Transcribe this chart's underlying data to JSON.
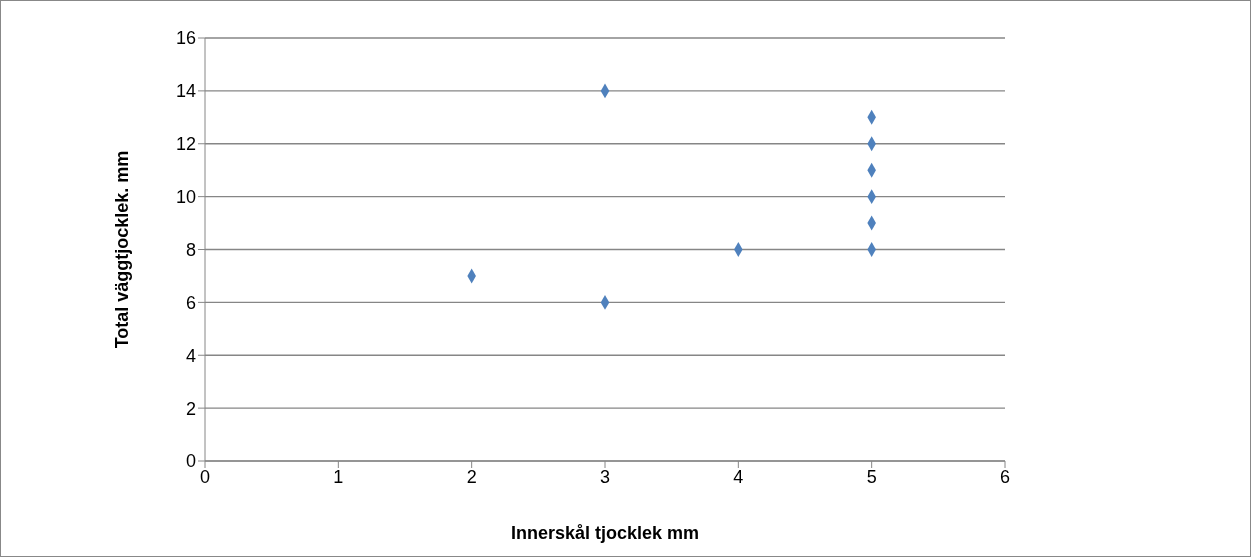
{
  "chart_data": {
    "type": "scatter",
    "xlabel": "Innerskål tjocklek mm",
    "ylabel": "Total väggtjocklek. mm",
    "x": [
      2,
      3,
      3,
      4,
      5,
      5,
      5,
      5,
      5,
      5
    ],
    "series": [
      {
        "color": "#4f81bd",
        "values": [
          7,
          14,
          6,
          8,
          8,
          9,
          10,
          11,
          12,
          13
        ]
      }
    ],
    "xlim": [
      0,
      6
    ],
    "xticks": [
      0,
      1,
      2,
      3,
      4,
      5,
      6
    ],
    "ylim": [
      0,
      16
    ],
    "yticks": [
      0,
      2,
      4,
      6,
      8,
      10,
      12,
      14,
      16
    ],
    "grid": "y",
    "legend": false,
    "marker": "diamond"
  }
}
